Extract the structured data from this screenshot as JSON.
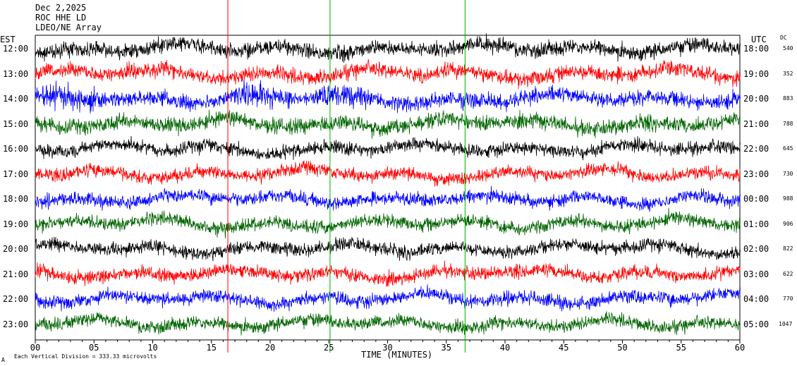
{
  "header": {
    "date": "Dec 2,2025",
    "station": "ROC HHE LD",
    "network": "LDEO/NE Array"
  },
  "labels": {
    "left_zone": "EST",
    "right_zone": "UTC",
    "dc_header": "DC",
    "x_axis_title": "TIME (MINUTES)",
    "scale_note": "Each Vertical Division =  333.33 microvolts",
    "corner_mark": "A"
  },
  "colors": {
    "cycle": [
      "#000000",
      "#ff0000",
      "#0000ff",
      "#006400"
    ],
    "marker_red": "#ff0000",
    "marker_green": "#00aa00"
  },
  "chart_data": {
    "type": "line",
    "description_kind": "helicorder seismogram, one trace per hour",
    "x_range": [
      0,
      60
    ],
    "x_ticks": [
      "00",
      "05",
      "10",
      "15",
      "20",
      "25",
      "30",
      "35",
      "40",
      "45",
      "50",
      "55",
      "60"
    ],
    "rows": [
      {
        "est": "12:00",
        "utc": "18:00",
        "dc": "540",
        "color": "black"
      },
      {
        "est": "13:00",
        "utc": "19:00",
        "dc": "352",
        "color": "red"
      },
      {
        "est": "14:00",
        "utc": "20:00",
        "dc": "883",
        "color": "blue"
      },
      {
        "est": "15:00",
        "utc": "21:00",
        "dc": "788",
        "color": "green"
      },
      {
        "est": "16:00",
        "utc": "22:00",
        "dc": "645",
        "color": "black"
      },
      {
        "est": "17:00",
        "utc": "23:00",
        "dc": "730",
        "color": "red"
      },
      {
        "est": "18:00",
        "utc": "00:00",
        "dc": "988",
        "color": "blue"
      },
      {
        "est": "19:00",
        "utc": "01:00",
        "dc": "906",
        "color": "green"
      },
      {
        "est": "20:00",
        "utc": "02:00",
        "dc": "822",
        "color": "black"
      },
      {
        "est": "21:00",
        "utc": "03:00",
        "dc": "622",
        "color": "red"
      },
      {
        "est": "22:00",
        "utc": "04:00",
        "dc": "770",
        "color": "blue"
      },
      {
        "est": "23:00",
        "utc": "05:00",
        "dc": "1047",
        "color": "green"
      }
    ],
    "vertical_markers": [
      {
        "minute": 16.4,
        "color": "red"
      },
      {
        "minute": 25.1,
        "color": "green"
      },
      {
        "minute": 36.6,
        "color": "green"
      }
    ],
    "grid": false
  }
}
